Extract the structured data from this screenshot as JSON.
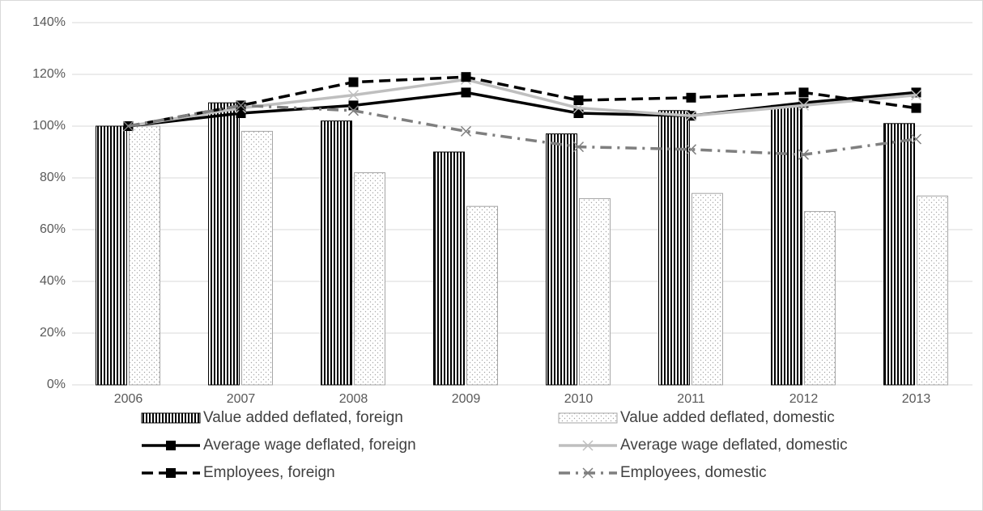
{
  "chart_data": {
    "type": "combo",
    "categories": [
      "2006",
      "2007",
      "2008",
      "2009",
      "2010",
      "2011",
      "2012",
      "2013"
    ],
    "ylim": [
      0,
      140
    ],
    "yticks": [
      {
        "value": 0,
        "label": "0%"
      },
      {
        "value": 20,
        "label": "20%"
      },
      {
        "value": 40,
        "label": "40%"
      },
      {
        "value": 60,
        "label": "60%"
      },
      {
        "value": 80,
        "label": "80%"
      },
      {
        "value": 100,
        "label": "100%"
      },
      {
        "value": 120,
        "label": "120%"
      },
      {
        "value": 140,
        "label": "140%"
      }
    ],
    "grid": true,
    "series": [
      {
        "name": "Value added deflated, foreign",
        "type": "bar",
        "pattern": "stripes",
        "color": "#000000",
        "values": [
          100,
          109,
          102,
          90,
          97,
          106,
          108,
          101
        ]
      },
      {
        "name": "Value added deflated, domestic",
        "type": "bar",
        "pattern": "dots",
        "color": "#a6a6a6",
        "values": [
          100,
          98,
          82,
          69,
          72,
          74,
          67,
          73
        ]
      },
      {
        "name": "Average wage deflated, foreign",
        "type": "line",
        "line_style": "solid",
        "marker": "square",
        "color": "#000000",
        "values": [
          100,
          105,
          108,
          113,
          105,
          104,
          109,
          113
        ]
      },
      {
        "name": "Average wage deflated, domestic",
        "type": "line",
        "line_style": "solid",
        "marker": "x",
        "color": "#bfbfbf",
        "values": [
          100,
          107,
          112,
          118,
          107,
          104,
          108,
          112
        ]
      },
      {
        "name": "Employees, foreign",
        "type": "line",
        "line_style": "dashed",
        "marker": "square",
        "color": "#000000",
        "values": [
          100,
          108,
          117,
          119,
          110,
          111,
          113,
          107
        ]
      },
      {
        "name": "Employees, domestic",
        "type": "line",
        "line_style": "dashdot",
        "marker": "x",
        "color": "#7f7f7f",
        "values": [
          100,
          108,
          106,
          98,
          92,
          91,
          89,
          95
        ]
      }
    ]
  }
}
